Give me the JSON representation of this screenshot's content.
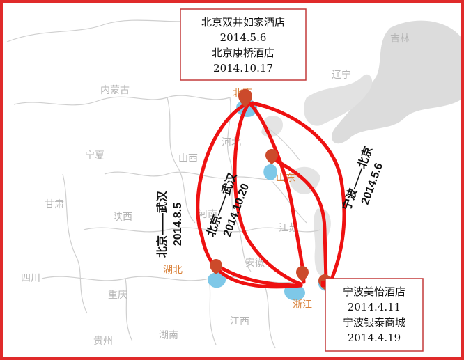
{
  "map": {
    "colors": {
      "frame": "#e02a2a",
      "route": "#ee1111",
      "sea_shadow": "#d7d7d7",
      "province_border": "#cfcfcf",
      "highlight_province": "#7ec8e8",
      "marker": "#cc4a2b",
      "region_label": "#b5b5b5",
      "highlight_label": "#d9823b"
    },
    "regions": {
      "jilin": "吉林",
      "liaoning": "辽宁",
      "neimenggu": "内蒙古",
      "beijing": "北京",
      "hebei": "河北",
      "ningxia": "宁夏",
      "shanxi": "山西",
      "shandong": "山东",
      "gansu": "甘肃",
      "shaanxi": "陕西",
      "henan": "河南",
      "jiangsu": "江苏",
      "anhui": "安徽",
      "hubei": "湖北",
      "sichuan": "四川",
      "chongqing": "重庆",
      "zhejiang": "浙江",
      "jiangxi": "江西",
      "hunan": "湖南",
      "guizhou": "贵州"
    },
    "beijing_box": [
      "北京双井如家酒店",
      "2014.5.6",
      "北京康桥酒店",
      "2014.10.17"
    ],
    "ningbo_box": [
      "宁波美怡酒店",
      "2014.4.11",
      "宁波银泰商城",
      "2014.4.19"
    ],
    "routes": {
      "bj_wh_1": [
        "北京——武汉",
        "2014.8.5"
      ],
      "bj_wh_2": [
        "北京——武汉",
        "2014.10.20"
      ],
      "nb_bj": [
        "宁波——北京",
        "2014.5.6"
      ]
    }
  }
}
